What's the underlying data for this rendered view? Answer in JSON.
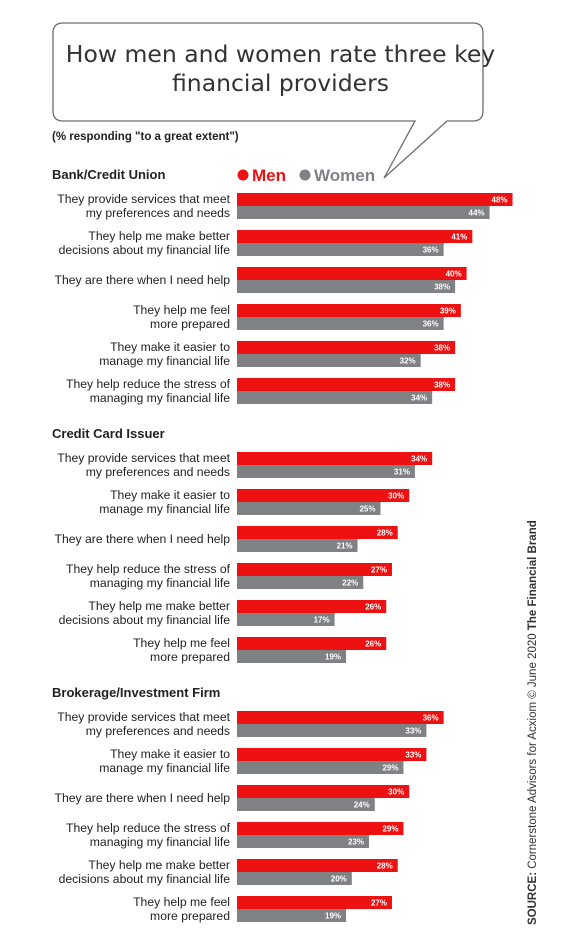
{
  "title": "How men and women rate three key financial providers",
  "subtitle": "(% responding \"to a great extent\")",
  "source": {
    "prefix": "SOURCE:",
    "text": "Cornerstone Advisors for Acxiom © June 2020",
    "brand": "The Financial Brand"
  },
  "colors": {
    "men": "#ee1111",
    "women": "#808184"
  },
  "chart_data": {
    "type": "bar",
    "orientation": "horizontal",
    "legend": {
      "position": "top",
      "entries": [
        "Men",
        "Women"
      ]
    },
    "value_suffix": "%",
    "xlim": [
      0,
      50
    ],
    "groups": [
      {
        "name": "Bank/Credit Union",
        "items": [
          {
            "label": [
              "They provide services that meet",
              "my preferences and needs"
            ],
            "men": 48,
            "women": 44
          },
          {
            "label": [
              "They help me make better",
              "decisions about my financial life"
            ],
            "men": 41,
            "women": 36
          },
          {
            "label": [
              "They are there when I need help"
            ],
            "men": 40,
            "women": 38
          },
          {
            "label": [
              "They help me feel",
              "more prepared"
            ],
            "men": 39,
            "women": 36
          },
          {
            "label": [
              "They make it easier to",
              "manage my financial life"
            ],
            "men": 38,
            "women": 32
          },
          {
            "label": [
              "They help reduce the stress of",
              "managing my financial life"
            ],
            "men": 38,
            "women": 34
          }
        ]
      },
      {
        "name": "Credit Card Issuer",
        "items": [
          {
            "label": [
              "They provide services that meet",
              "my preferences and needs"
            ],
            "men": 34,
            "women": 31
          },
          {
            "label": [
              "They make it easier to",
              "manage my financial life"
            ],
            "men": 30,
            "women": 25
          },
          {
            "label": [
              "They are there when I need help"
            ],
            "men": 28,
            "women": 21
          },
          {
            "label": [
              "They help reduce the stress of",
              "managing my financial life"
            ],
            "men": 27,
            "women": 22
          },
          {
            "label": [
              "They help me make better",
              "decisions about my financial life"
            ],
            "men": 26,
            "women": 17
          },
          {
            "label": [
              "They help me feel",
              "more prepared"
            ],
            "men": 26,
            "women": 19
          }
        ]
      },
      {
        "name": "Brokerage/Investment Firm",
        "items": [
          {
            "label": [
              "They provide services that meet",
              "my preferences and needs"
            ],
            "men": 36,
            "women": 33
          },
          {
            "label": [
              "They make it easier to",
              "manage my financial life"
            ],
            "men": 33,
            "women": 29
          },
          {
            "label": [
              "They are there when I need help"
            ],
            "men": 30,
            "women": 24
          },
          {
            "label": [
              "They help reduce the stress of",
              "managing my financial life"
            ],
            "men": 29,
            "women": 23
          },
          {
            "label": [
              "They help me make better",
              "decisions about my financial life"
            ],
            "men": 28,
            "women": 20
          },
          {
            "label": [
              "They help me feel",
              "more prepared"
            ],
            "men": 27,
            "women": 19
          }
        ]
      }
    ]
  }
}
